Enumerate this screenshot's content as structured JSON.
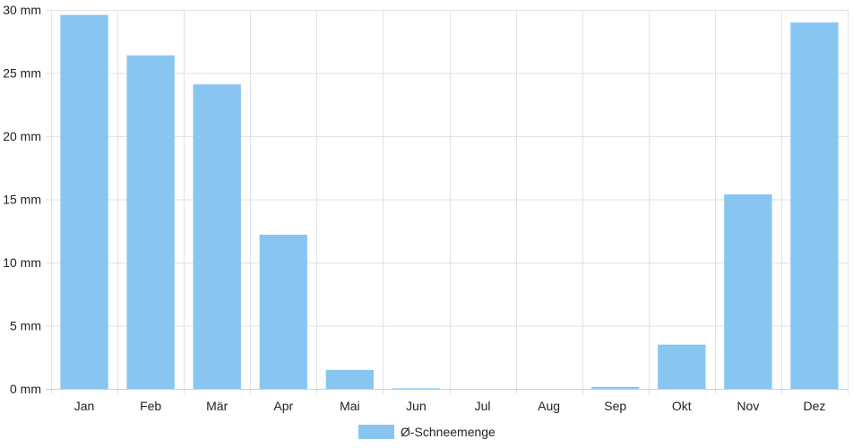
{
  "chart_data": {
    "type": "bar",
    "categories": [
      "Jan",
      "Feb",
      "Mär",
      "Apr",
      "Mai",
      "Jun",
      "Jul",
      "Aug",
      "Sep",
      "Okt",
      "Nov",
      "Dez"
    ],
    "series": [
      {
        "name": "Ø-Schneemenge",
        "values": [
          29.6,
          26.4,
          24.1,
          12.2,
          1.5,
          0.05,
          0,
          0,
          0.15,
          3.5,
          15.4,
          29.0
        ]
      }
    ],
    "yunit": " mm",
    "ylim": [
      0,
      30
    ],
    "yticks": [
      0,
      5,
      10,
      15,
      20,
      25,
      30
    ],
    "grid": true,
    "legend": "bottom-center",
    "colors": {
      "bar": "#88c6f1",
      "grid": "#e2e2e2",
      "axis": "#cfcfcf",
      "text": "#222222"
    }
  }
}
